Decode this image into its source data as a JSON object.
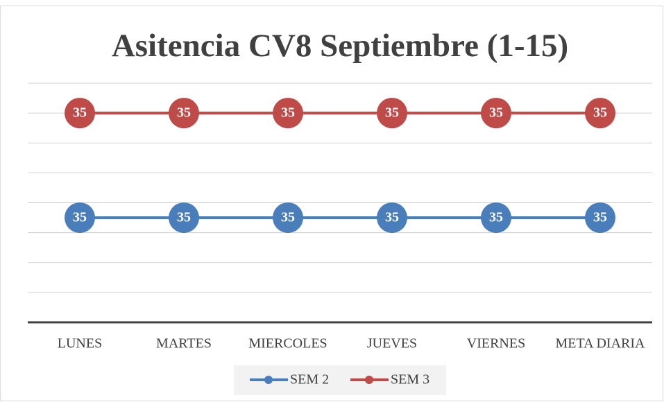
{
  "chart_data": {
    "type": "line",
    "stacked": true,
    "title": "Asitencia CV8 Septiembre (1-15)",
    "categories": [
      "LUNES",
      "MARTES",
      "MIERCOLES",
      "JUEVES",
      "VIERNES",
      "META DIARIA"
    ],
    "series": [
      {
        "name": "SEM 2",
        "color": "#4a7ebb",
        "values": [
          35,
          35,
          35,
          35,
          35,
          35
        ]
      },
      {
        "name": "SEM 3",
        "color": "#be4b48",
        "values": [
          35,
          35,
          35,
          35,
          35,
          35
        ]
      }
    ],
    "ylim": [
      0,
      80
    ],
    "yticks": [
      0,
      10,
      20,
      30,
      40,
      50,
      60,
      70,
      80
    ],
    "grid": true,
    "legend": "bottom"
  }
}
